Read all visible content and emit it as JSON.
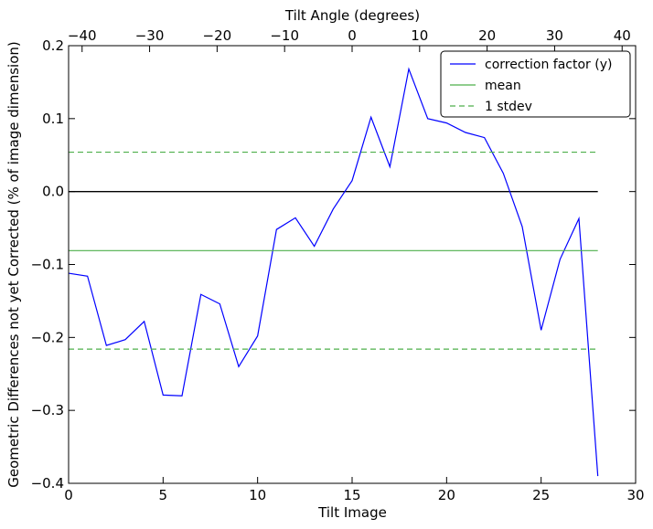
{
  "chart_data": {
    "type": "line",
    "xlabel": "Tilt Image",
    "ylabel": "Geometric Differences not yet Corrected (% of image dimension)",
    "top_xlabel": "Tilt Angle (degrees)",
    "xlim": [
      0,
      30
    ],
    "ylim": [
      -0.4,
      0.2
    ],
    "top_xlim": [
      -42,
      42
    ],
    "x_ticks": [
      0,
      5,
      10,
      15,
      20,
      25,
      30
    ],
    "x_tick_labels": [
      "0",
      "5",
      "10",
      "15",
      "20",
      "25",
      "30"
    ],
    "y_ticks": [
      -0.4,
      -0.3,
      -0.2,
      -0.1,
      0.0,
      0.1,
      0.2
    ],
    "y_tick_labels": [
      "−0.4",
      "−0.3",
      "−0.2",
      "−0.1",
      "0.0",
      "0.1",
      "0.2"
    ],
    "top_ticks": [
      -40,
      -30,
      -20,
      -10,
      0,
      10,
      20,
      30,
      40
    ],
    "top_tick_labels": [
      "−40",
      "−30",
      "−20",
      "−10",
      "0",
      "10",
      "20",
      "30",
      "40"
    ],
    "grid": false,
    "legend_position": "top-right",
    "series": [
      {
        "name": "correction factor (y)",
        "color": "#0000ff",
        "style": "solid",
        "x": [
          0,
          1,
          2,
          3,
          4,
          5,
          6,
          7,
          8,
          9,
          10,
          11,
          12,
          13,
          14,
          15,
          16,
          17,
          18,
          19,
          20,
          21,
          22,
          23,
          24,
          25,
          26,
          27,
          28
        ],
        "y": [
          -0.112,
          -0.116,
          -0.211,
          -0.203,
          -0.178,
          -0.279,
          -0.28,
          -0.141,
          -0.154,
          -0.24,
          -0.198,
          -0.052,
          -0.036,
          -0.075,
          -0.024,
          0.015,
          0.102,
          0.034,
          0.168,
          0.1,
          0.094,
          0.081,
          0.074,
          0.025,
          -0.048,
          -0.19,
          -0.093,
          -0.037,
          -0.39
        ]
      },
      {
        "name": "mean",
        "color": "#4daf4a",
        "style": "solid",
        "x": [
          0,
          28
        ],
        "y": [
          -0.081,
          -0.081
        ]
      },
      {
        "name": "1 stdev",
        "color": "#4daf4a",
        "style": "dashed",
        "x": [
          0,
          28
        ],
        "y": [
          0.054,
          0.054
        ]
      },
      {
        "name": "1 stdev",
        "color": "#4daf4a",
        "style": "dashed",
        "x": [
          0,
          28
        ],
        "y": [
          -0.216,
          -0.216
        ],
        "in_legend": false
      }
    ],
    "reference_lines": [
      {
        "y": 0.0,
        "x": [
          0,
          28
        ],
        "color": "#000000"
      }
    ]
  }
}
